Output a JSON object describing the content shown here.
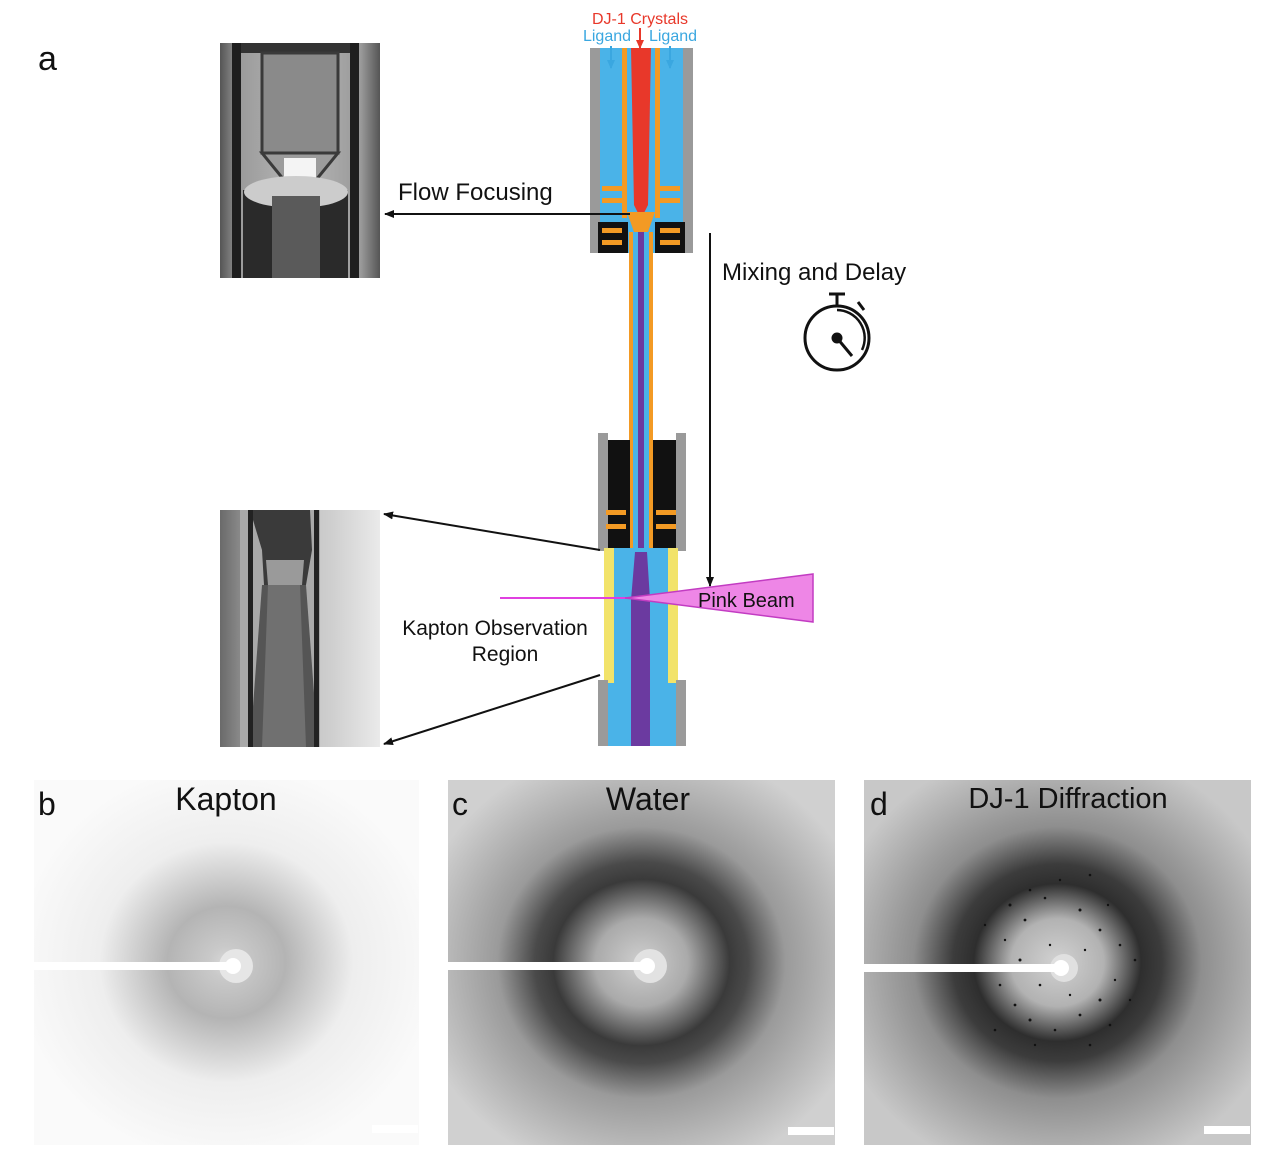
{
  "panels": {
    "a": {
      "letter": "a",
      "inputs": {
        "crystals": "DJ-1 Crystals",
        "ligand_left": "Ligand",
        "ligand_right": "Ligand"
      },
      "labels": {
        "flow_focusing": "Flow Focusing",
        "mixing_delay": "Mixing and Delay",
        "kapton_line1": "Kapton Observation",
        "kapton_line2": "Region",
        "pink_beam": "Pink Beam"
      },
      "icons": [
        "stopwatch-icon"
      ]
    },
    "b": {
      "letter": "b",
      "title": "Kapton"
    },
    "c": {
      "letter": "c",
      "title": "Water"
    },
    "d": {
      "letter": "d",
      "title": "DJ-1 Diffraction"
    }
  },
  "colors": {
    "crystal_red": "#e8382a",
    "ligand_blue": "#3aa7e0",
    "fluid_blue": "#4ab3e8",
    "mixed_purple": "#6b3aa0",
    "orange": "#f39a24",
    "kapton_yellow": "#f2e36a",
    "holder_gray": "#9a9a9a",
    "beam_pink": "#ee86e6",
    "beam_line": "#e040e0"
  }
}
